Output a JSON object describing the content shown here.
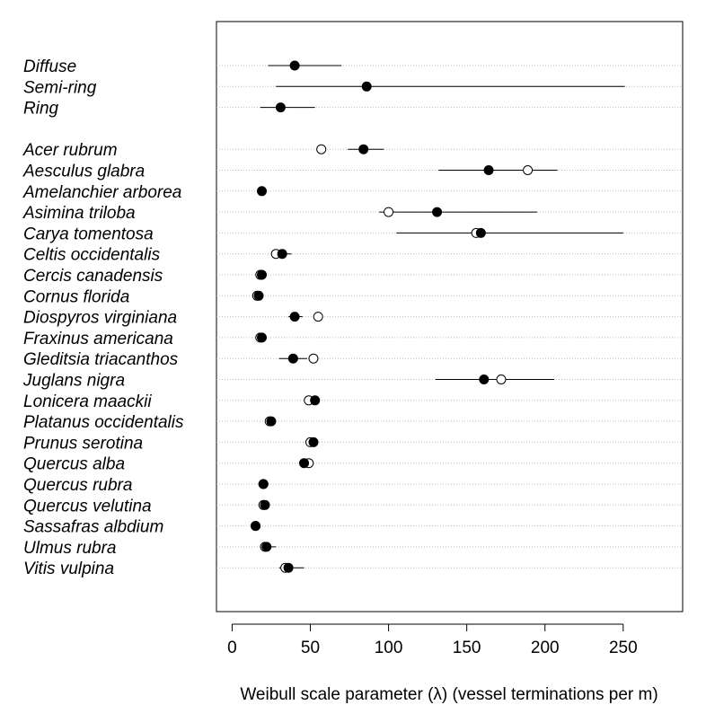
{
  "chart_data": {
    "type": "scatter",
    "subtype": "dot-plot-with-intervals",
    "xlabel": "Weibull scale parameter (λ) (vessel terminations per m)",
    "xlim": [
      -10,
      288
    ],
    "x_ticks": [
      0,
      50,
      100,
      150,
      200,
      250
    ],
    "gridlines": "horizontal dotted",
    "legend": "none",
    "categories": [
      "Diffuse",
      "Semi-ring",
      "Ring",
      "Acer rubrum",
      "Aesculus glabra",
      "Amelanchier arborea",
      "Asimina triloba",
      "Carya tomentosa",
      "Celtis occidentalis",
      "Cercis canadensis",
      "Cornus florida",
      "Diospyros virginiana",
      "Fraxinus americana",
      "Gleditsia triacanthos",
      "Juglans nigra",
      "Lonicera maackii",
      "Platanus occidentalis",
      "Prunus serotina",
      "Quercus alba",
      "Quercus rubra",
      "Quercus velutina",
      "Sassafras albdium",
      "Ulmus rubra",
      "Vitis vulpina"
    ],
    "series": [
      {
        "marker": "filled",
        "values": [
          40,
          86,
          31,
          84,
          164,
          19,
          131,
          159,
          32,
          19,
          17,
          40,
          19,
          39,
          161,
          53,
          25,
          52,
          46,
          20,
          21,
          15,
          22,
          36
        ],
        "lower": [
          23,
          28,
          18,
          74,
          132,
          17,
          94,
          105,
          26,
          17,
          15,
          36,
          17,
          30,
          130,
          50,
          22,
          49,
          43,
          19,
          19,
          13,
          19,
          30
        ],
        "upper": [
          70,
          251,
          53,
          97,
          208,
          21,
          195,
          250,
          38,
          21,
          19,
          45,
          21,
          48,
          206,
          56,
          28,
          55,
          50,
          21,
          22,
          17,
          28,
          46
        ]
      },
      {
        "marker": "open",
        "values": [
          null,
          null,
          null,
          57,
          189,
          null,
          100,
          156,
          28,
          18,
          16,
          55,
          18,
          52,
          172,
          49,
          24,
          50,
          49,
          20,
          20,
          15,
          21,
          34
        ]
      }
    ]
  },
  "colors": {
    "marker": "#000000",
    "gridline": "#bbbbbb",
    "axis": "#000000"
  }
}
